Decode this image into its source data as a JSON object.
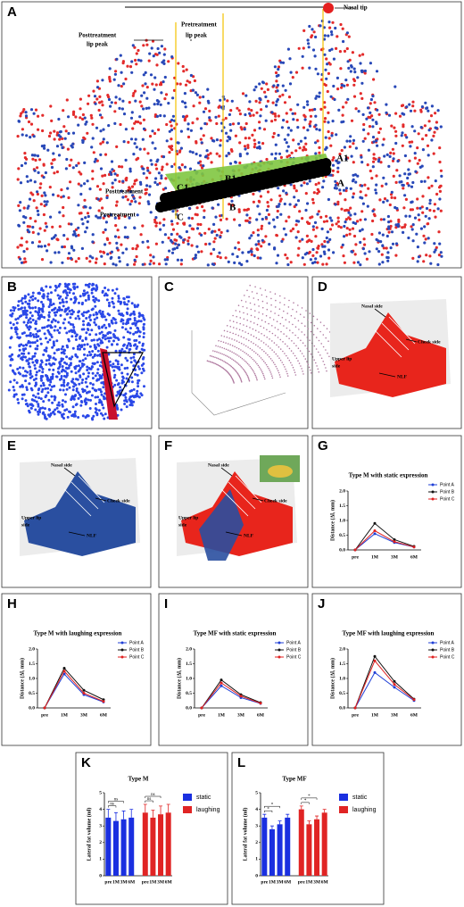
{
  "panels": {
    "A": {
      "label": "A",
      "notes": [
        "Nasal tip",
        "Posttreatment",
        "lip peak",
        "Pretreatment",
        "lip peak",
        "A1",
        "A",
        "B1",
        "B",
        "C1",
        "C",
        "Posttreatment",
        "Pretreatment"
      ]
    },
    "B": {
      "label": "B"
    },
    "C": {
      "label": "C"
    },
    "D": {
      "label": "D",
      "notes": [
        "Nasal side",
        "Cheek side",
        "Upper lip",
        "side",
        "NLF"
      ]
    },
    "E": {
      "label": "E",
      "notes": [
        "Nasal side",
        "Cheek side",
        "Upper lip",
        "side",
        "NLF"
      ]
    },
    "F": {
      "label": "F",
      "notes": [
        "Nasal side",
        "Cheek side",
        "Upper lip",
        "side",
        "NLF"
      ]
    }
  },
  "chart_data": [
    {
      "type": "line",
      "label": "G",
      "title": "Type M with static expression",
      "y_label": "Distance (Δl, mm)",
      "categories": [
        "pre",
        "1M",
        "3M",
        "6M"
      ],
      "series": [
        {
          "name": "Point A",
          "color": "#1f3fd6",
          "values": [
            0,
            0.55,
            0.25,
            0.1
          ]
        },
        {
          "name": "Point B",
          "color": "#111111",
          "values": [
            0,
            0.9,
            0.35,
            0.12
          ]
        },
        {
          "name": "Point C",
          "color": "#e02020",
          "values": [
            0,
            0.65,
            0.28,
            0.1
          ]
        }
      ],
      "ylim": [
        0,
        2
      ],
      "yticks": [
        {
          "value": 0,
          "label": "0.0"
        },
        {
          "value": 0.5,
          "label": "0.5"
        },
        {
          "value": 1,
          "label": "1.0"
        },
        {
          "value": 1.5,
          "label": "1.5"
        },
        {
          "value": 2,
          "label": "2.0"
        }
      ]
    },
    {
      "type": "line",
      "label": "H",
      "title": "Type M with laughing expression",
      "y_label": "Distance (Δl, mm)",
      "categories": [
        "pre",
        "1M",
        "3M",
        "6M"
      ],
      "series": [
        {
          "name": "Point A",
          "color": "#1f3fd6",
          "values": [
            0,
            1.15,
            0.45,
            0.2
          ]
        },
        {
          "name": "Point B",
          "color": "#111111",
          "values": [
            0,
            1.35,
            0.6,
            0.28
          ]
        },
        {
          "name": "Point C",
          "color": "#e02020",
          "values": [
            0,
            1.25,
            0.5,
            0.22
          ]
        }
      ],
      "ylim": [
        0,
        2
      ],
      "yticks": [
        {
          "value": 0,
          "label": "0.0"
        },
        {
          "value": 0.5,
          "label": "0.5"
        },
        {
          "value": 1,
          "label": "1.0"
        },
        {
          "value": 1.5,
          "label": "1.5"
        },
        {
          "value": 2,
          "label": "2.0"
        }
      ]
    },
    {
      "type": "line",
      "label": "I",
      "title": "Type MF with static expression",
      "y_label": "Distance (Δl, mm)",
      "categories": [
        "pre",
        "1M",
        "3M",
        "6M"
      ],
      "series": [
        {
          "name": "Point A",
          "color": "#1f3fd6",
          "values": [
            0,
            0.75,
            0.35,
            0.15
          ]
        },
        {
          "name": "Point B",
          "color": "#111111",
          "values": [
            0,
            0.95,
            0.45,
            0.18
          ]
        },
        {
          "name": "Point C",
          "color": "#e02020",
          "values": [
            0,
            0.85,
            0.4,
            0.16
          ]
        }
      ],
      "ylim": [
        0,
        2
      ],
      "yticks": [
        {
          "value": 0,
          "label": "0.0"
        },
        {
          "value": 0.5,
          "label": "0.5"
        },
        {
          "value": 1,
          "label": "1.0"
        },
        {
          "value": 1.5,
          "label": "1.5"
        },
        {
          "value": 2,
          "label": "2.0"
        }
      ]
    },
    {
      "type": "line",
      "label": "J",
      "title": "Type MF with laughing expression",
      "y_label": "Distance (Δl, mm)",
      "categories": [
        "pre",
        "1M",
        "3M",
        "6M"
      ],
      "series": [
        {
          "name": "Point A",
          "color": "#1f3fd6",
          "values": [
            0,
            1.2,
            0.7,
            0.25
          ]
        },
        {
          "name": "Point B",
          "color": "#111111",
          "values": [
            0,
            1.75,
            0.9,
            0.3
          ]
        },
        {
          "name": "Point C",
          "color": "#e02020",
          "values": [
            0,
            1.6,
            0.8,
            0.28
          ]
        }
      ],
      "ylim": [
        0,
        2
      ],
      "yticks": [
        {
          "value": 0,
          "label": "0.0"
        },
        {
          "value": 0.5,
          "label": "0.5"
        },
        {
          "value": 1,
          "label": "1.0"
        },
        {
          "value": 1.5,
          "label": "1.5"
        },
        {
          "value": 2,
          "label": "2.0"
        }
      ]
    },
    {
      "type": "bar",
      "label": "K",
      "title": "Type M",
      "y_label": "Lateral fat volume (ml)",
      "categories": [
        "pre",
        "1M",
        "3M",
        "6M"
      ],
      "series": [
        {
          "name": "static",
          "color": "#1a2fe0",
          "values": [
            3.5,
            3.3,
            3.4,
            3.5
          ],
          "errors": [
            0.5,
            0.5,
            0.5,
            0.5
          ]
        },
        {
          "name": "laughing",
          "color": "#e02424",
          "values": [
            3.8,
            3.5,
            3.7,
            3.8
          ],
          "errors": [
            0.5,
            0.45,
            0.5,
            0.5
          ]
        }
      ],
      "ylim": [
        0,
        5
      ],
      "yticks": [
        0,
        1,
        2,
        3,
        4,
        5
      ],
      "annotations": [
        "ns",
        "ns",
        "ns",
        "ns"
      ]
    },
    {
      "type": "bar",
      "label": "L",
      "title": "Type MF",
      "y_label": "Lateral fat volume (ml)",
      "categories": [
        "pre",
        "1M",
        "3M",
        "6M"
      ],
      "series": [
        {
          "name": "static",
          "color": "#1a2fe0",
          "values": [
            3.5,
            2.8,
            3.1,
            3.5
          ],
          "errors": [
            0.2,
            0.2,
            0.2,
            0.2
          ]
        },
        {
          "name": "laughing",
          "color": "#e02424",
          "values": [
            4.0,
            3.1,
            3.4,
            3.8
          ],
          "errors": [
            0.2,
            0.2,
            0.2,
            0.2
          ]
        }
      ],
      "ylim": [
        0,
        5
      ],
      "yticks": [
        0,
        1,
        2,
        3,
        4,
        5
      ],
      "annotations": [
        "*",
        "*",
        "*",
        "*"
      ]
    }
  ]
}
